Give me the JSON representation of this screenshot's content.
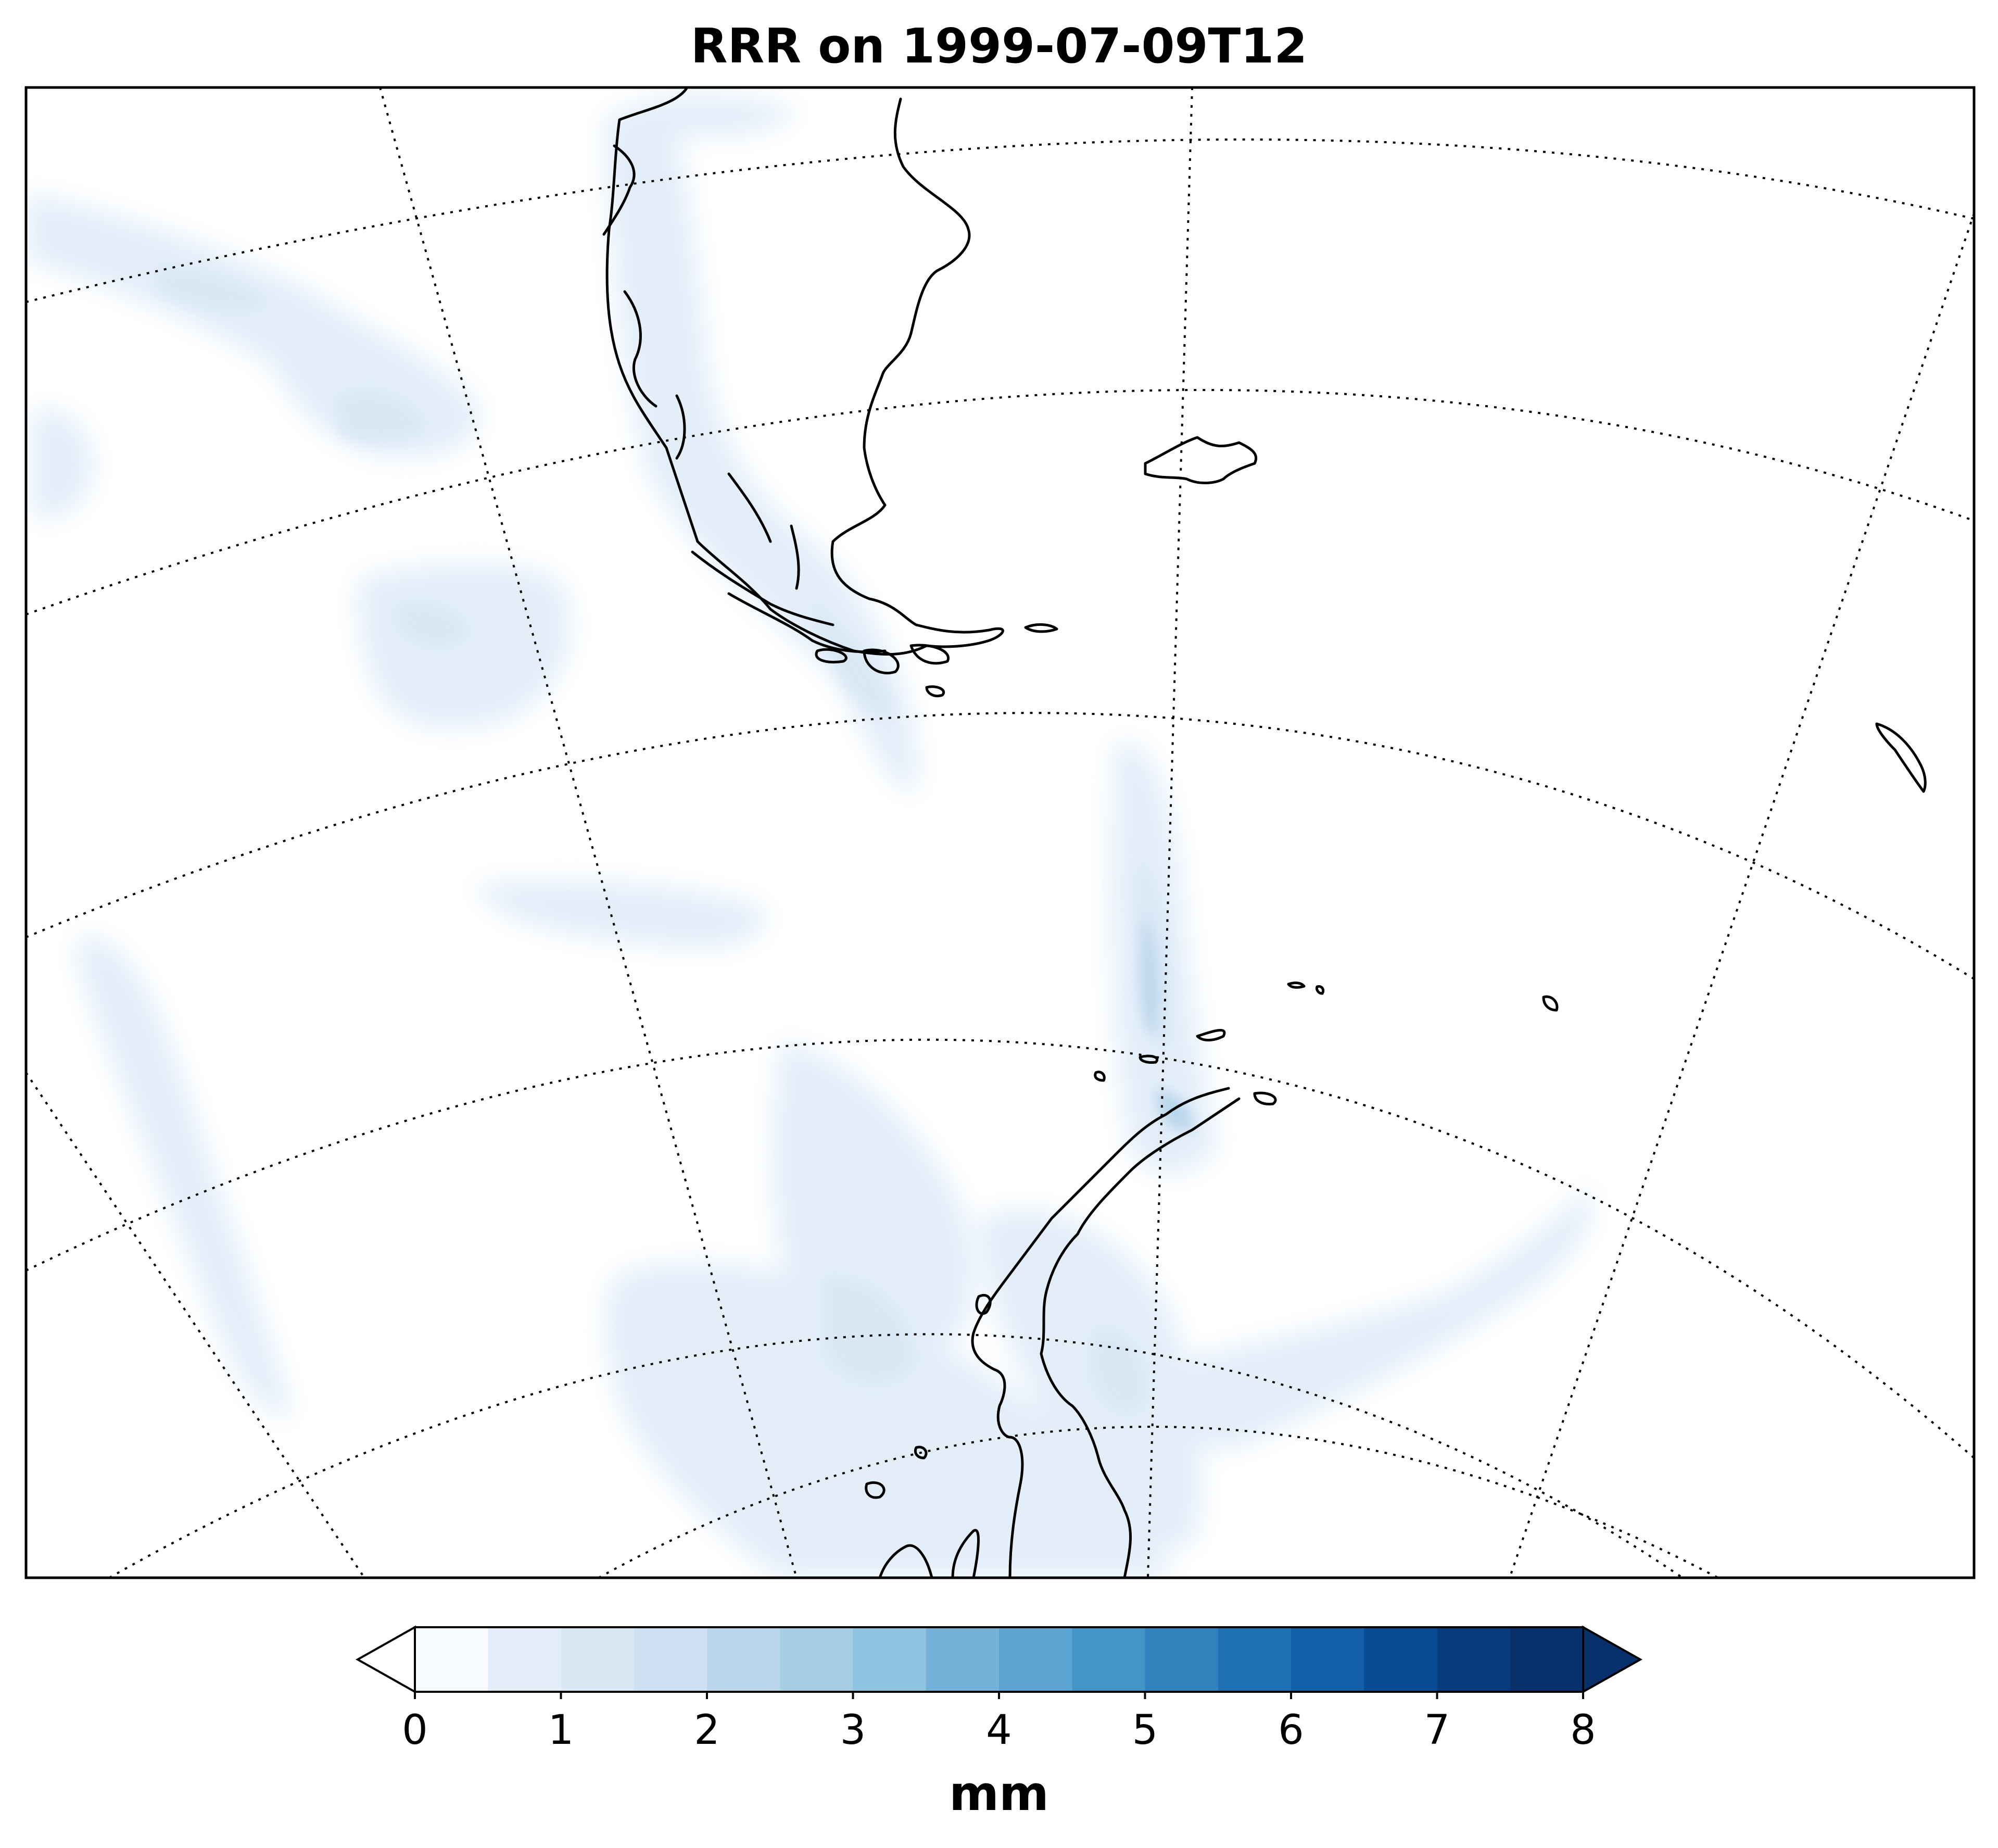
{
  "map": {
    "title": "RRR on 1999-07-09T12",
    "variable": "RRR",
    "valid_time": "1999-07-09T12",
    "colormap": "Blues",
    "colorbar": {
      "unit_label": "mm",
      "min": 0,
      "max": 8,
      "step": 0.5,
      "extend": "both",
      "orientation": "horizontal",
      "ticks": [
        "0",
        "1",
        "2",
        "3",
        "4",
        "5",
        "6",
        "7",
        "8"
      ],
      "colors": [
        "#f7fbff",
        "#e3eef9",
        "#dae8f6",
        "#cde0f1",
        "#bad6eb",
        "#a5cde3",
        "#8fc2de",
        "#76b1d8",
        "#5ba3d0",
        "#4594c7",
        "#3282be",
        "#2070b4",
        "#125fa7",
        "#084c94",
        "#083b7c",
        "#08306b"
      ],
      "under_color": "#ffffff",
      "over_color": "#08306b"
    },
    "coastline_color": "#000000",
    "gridlines": "dotted"
  }
}
